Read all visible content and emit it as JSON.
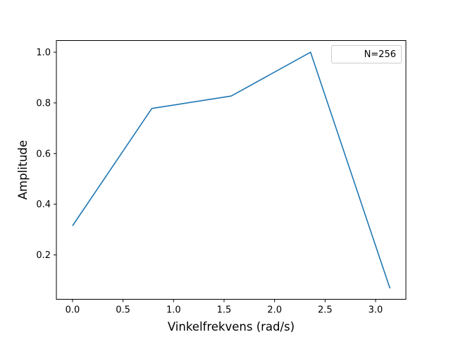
{
  "chart_data": {
    "type": "line",
    "xlabel": "Vinkelfrekvens (rad/s)",
    "ylabel": "Amplitude",
    "xlim": [
      -0.16,
      3.3
    ],
    "ylim": [
      0.025,
      1.046
    ],
    "xticks": [
      0.0,
      0.5,
      1.0,
      1.5,
      2.0,
      2.5,
      3.0
    ],
    "xtick_labels": [
      "0.0",
      "0.5",
      "1.0",
      "1.5",
      "2.0",
      "2.5",
      "3.0"
    ],
    "yticks": [
      0.2,
      0.4,
      0.6,
      0.8,
      1.0
    ],
    "ytick_labels": [
      "0.2",
      "0.4",
      "0.6",
      "0.8",
      "1.0"
    ],
    "grid": false,
    "legend_position": "top-right",
    "series": [
      {
        "name": "N=256",
        "color": "#1f77b4",
        "x": [
          0.0,
          0.785,
          1.571,
          2.356,
          3.142
        ],
        "y": [
          0.315,
          0.778,
          0.827,
          1.0,
          0.068
        ]
      }
    ]
  }
}
